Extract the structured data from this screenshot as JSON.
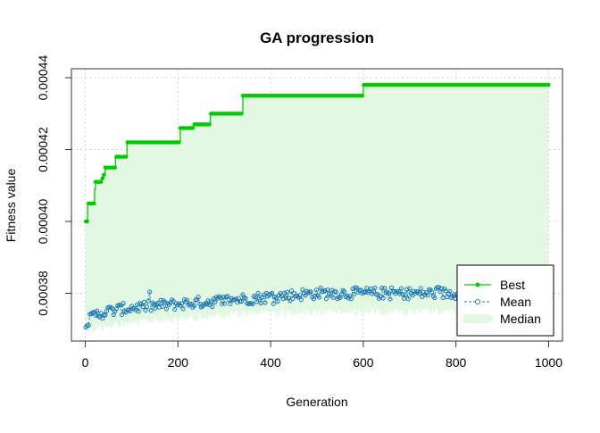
{
  "colors": {
    "best": "#00cd00",
    "mean": "#1f78b4",
    "median_fill": "#e2f8e2",
    "grid": "#d3d3d3",
    "axis": "#333333",
    "text": "#000000"
  },
  "chart_data": {
    "type": "line",
    "title": "GA progression",
    "xlabel": "Generation",
    "ylabel": "Fitness value",
    "xlim": [
      -30,
      1030
    ],
    "ylim": [
      0.0003667,
      0.0004425
    ],
    "x_ticks": [
      0,
      200,
      400,
      600,
      800,
      1000
    ],
    "x_tick_labels": [
      "0",
      "200",
      "400",
      "600",
      "800",
      "1000"
    ],
    "y_ticks": [
      0.00038,
      0.0004,
      0.00042,
      0.00044
    ],
    "y_tick_labels": [
      "0.00038",
      "0.00040",
      "0.00042",
      "0.00044"
    ],
    "grid": true,
    "legend_position": "bottom-right",
    "legend": [
      {
        "label": "Best",
        "style": "line-dot"
      },
      {
        "label": "Mean",
        "style": "dashed-circle"
      },
      {
        "label": "Median",
        "style": "band"
      }
    ],
    "series": [
      {
        "name": "Best",
        "type": "step",
        "points": [
          [
            1,
            0.0004
          ],
          [
            5,
            0.000405
          ],
          [
            20,
            0.000409
          ],
          [
            22,
            0.000411
          ],
          [
            35,
            0.000412
          ],
          [
            40,
            0.000413
          ],
          [
            43,
            0.000415
          ],
          [
            65,
            0.000418
          ],
          [
            90,
            0.000422
          ],
          [
            205,
            0.000426
          ],
          [
            235,
            0.000427
          ],
          [
            270,
            0.00043
          ],
          [
            340,
            0.000435
          ],
          [
            450,
            0.000435
          ],
          [
            600,
            0.000438
          ],
          [
            1000,
            0.000438
          ]
        ]
      },
      {
        "name": "Mean",
        "type": "noisy",
        "trend": [
          [
            1,
            0.00037
          ],
          [
            5,
            0.000372
          ],
          [
            20,
            0.000374
          ],
          [
            50,
            0.000375
          ],
          [
            100,
            0.000376
          ],
          [
            200,
            0.000377
          ],
          [
            300,
            0.000378
          ],
          [
            400,
            0.000379
          ],
          [
            500,
            0.00038
          ],
          [
            600,
            0.00038
          ],
          [
            700,
            0.00038
          ],
          [
            800,
            0.00038
          ],
          [
            1000,
            0.00038
          ]
        ],
        "noise": 1.6e-06
      },
      {
        "name": "Median",
        "type": "band",
        "lower_trend": [
          [
            1,
            0.000371
          ],
          [
            100,
            0.000373
          ],
          [
            200,
            0.000374
          ],
          [
            400,
            0.000376
          ],
          [
            600,
            0.000376
          ],
          [
            800,
            0.000376
          ],
          [
            1000,
            0.000377
          ]
        ]
      }
    ]
  }
}
